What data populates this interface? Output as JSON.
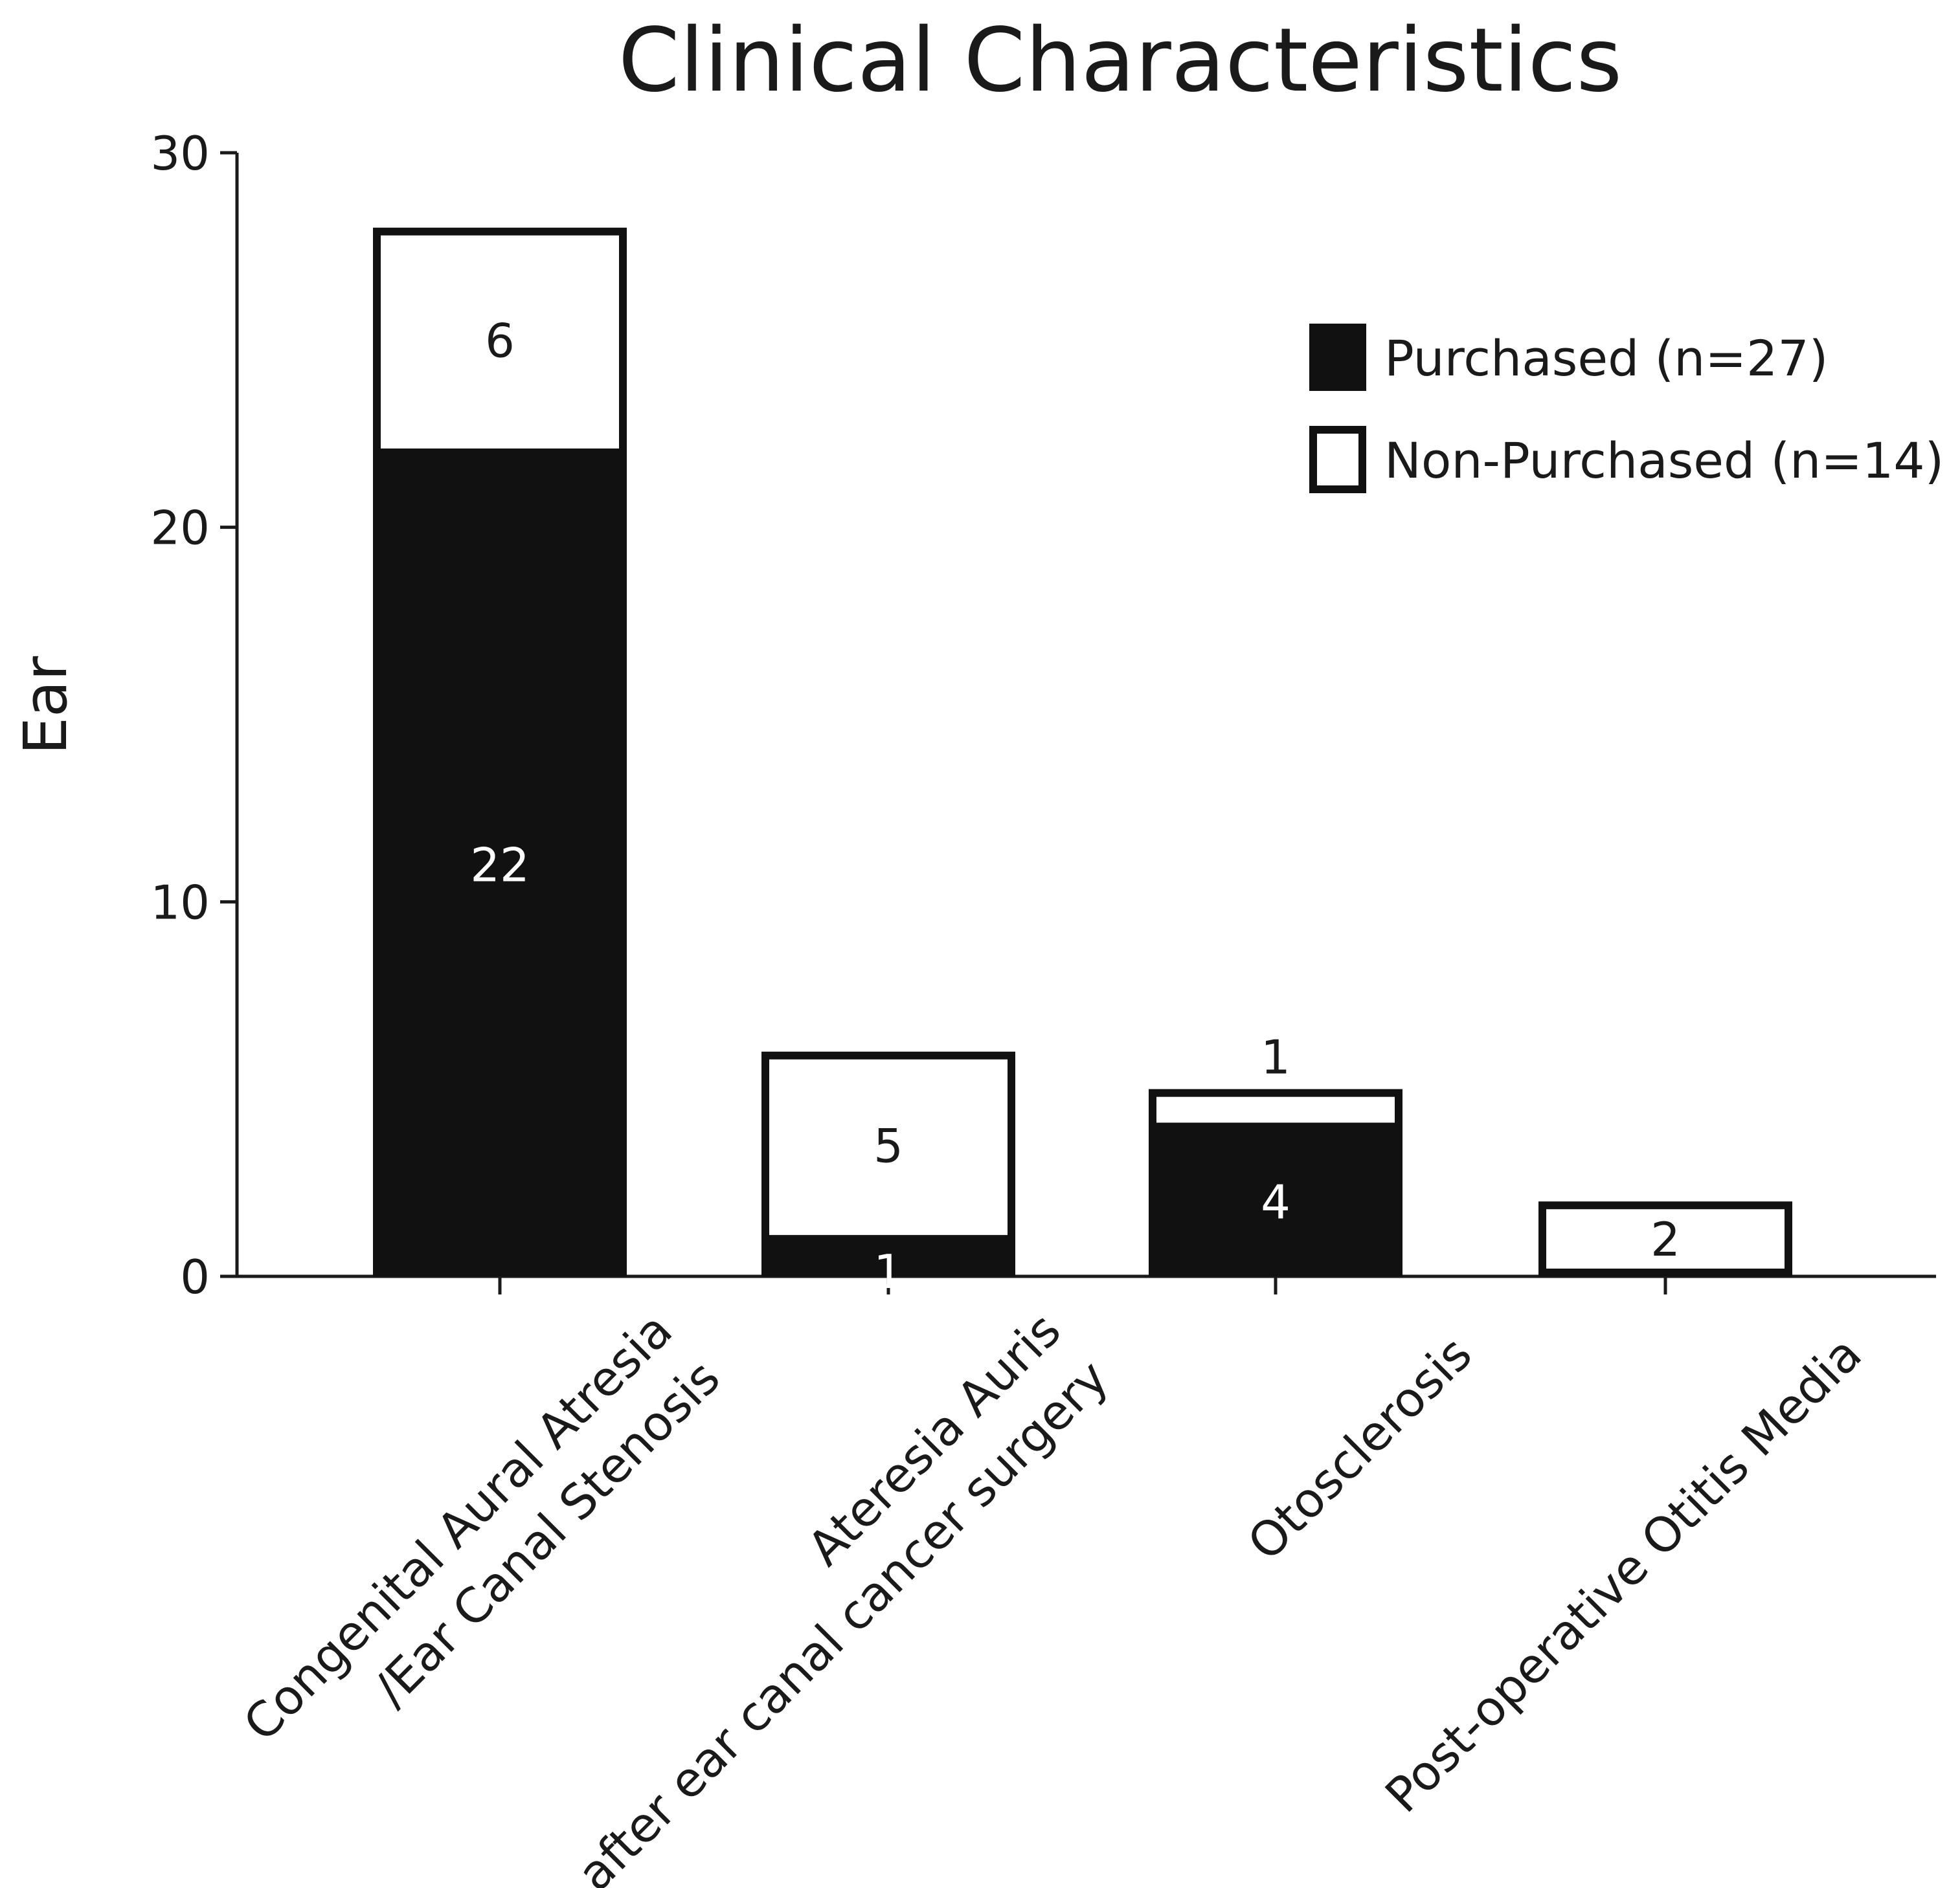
{
  "chart_data": {
    "type": "bar",
    "stacked": true,
    "title": "Clinical Characteristics",
    "xlabel": "",
    "ylabel": "Ear",
    "ylim": [
      0,
      30
    ],
    "yticks": [
      0,
      10,
      20,
      30
    ],
    "categories": [
      [
        "Congenital Aural Atresia",
        "/Ear Canal Stenosis"
      ],
      [
        "Ateresia Auris",
        "after ear canal cancer surgery"
      ],
      [
        "Otosclerosis"
      ],
      [
        "Post-operative Otitis Media"
      ]
    ],
    "series": [
      {
        "name": "Purchased",
        "legend": "Purchased (n=27)",
        "color": "#111111",
        "values": [
          22,
          1,
          4,
          0
        ]
      },
      {
        "name": "Non-Purchased",
        "legend": "Non-Purchased (n=14)",
        "color": "#ffffff",
        "values": [
          6,
          5,
          1,
          2
        ]
      }
    ],
    "legend_position": "top-right"
  }
}
